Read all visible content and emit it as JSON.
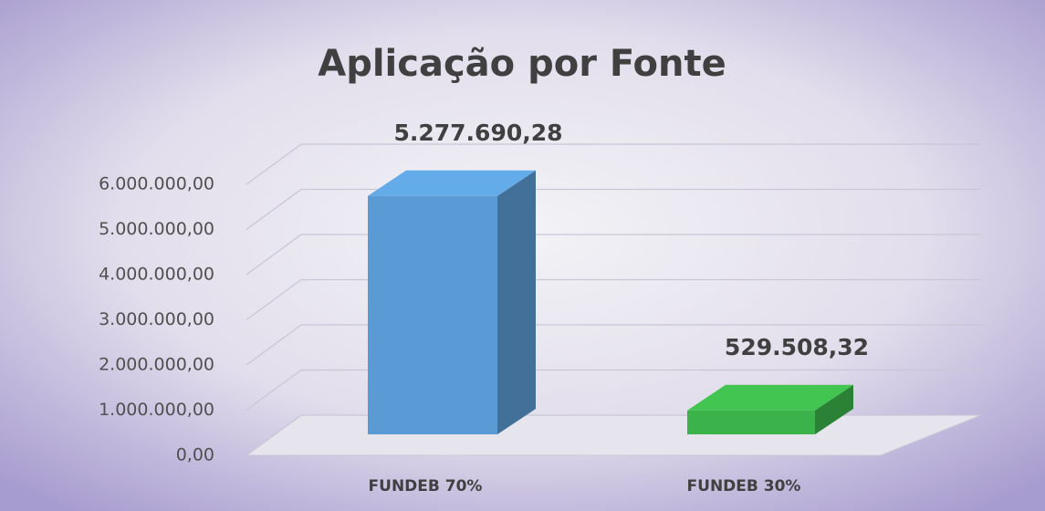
{
  "chart_data": {
    "type": "bar3d",
    "title": "Aplicação por Fonte",
    "categories": [
      "FUNDEB 70%",
      "FUNDEB 30%"
    ],
    "values": [
      5277690.28,
      529508.32
    ],
    "value_labels": [
      "5.277.690,28",
      "529.508,32"
    ],
    "colors": [
      "#5b9bd5",
      "#3cb34a"
    ],
    "ylim": [
      0,
      6000000
    ],
    "yticks": [
      {
        "value": 0,
        "label": "0,00"
      },
      {
        "value": 1000000,
        "label": "1.000.000,00"
      },
      {
        "value": 2000000,
        "label": "2.000.000,00"
      },
      {
        "value": 3000000,
        "label": "3.000.000,00"
      },
      {
        "value": 4000000,
        "label": "4.000.000,00"
      },
      {
        "value": 5000000,
        "label": "5.000.000,00"
      },
      {
        "value": 6000000,
        "label": "6.000.000,00"
      }
    ],
    "grid": true
  }
}
